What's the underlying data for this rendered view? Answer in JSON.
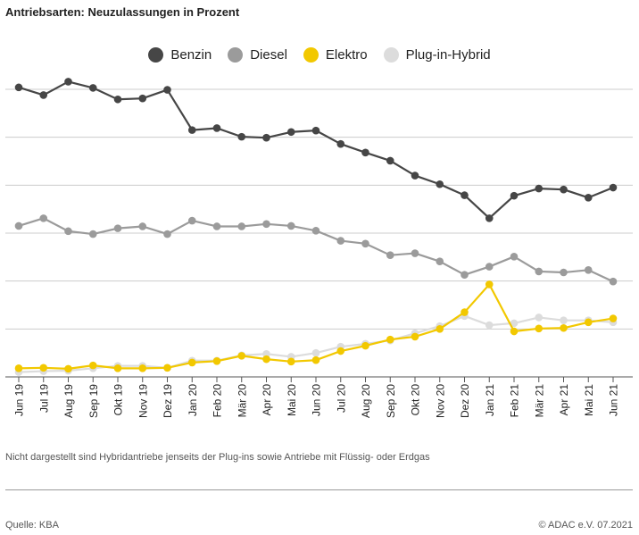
{
  "title": "Antriebsarten: Neuzulassungen in Prozent",
  "note": "Nicht dargestellt sind Hybridantriebe jenseits der Plug-ins sowie Antriebe mit Flüssig- oder Erdgas",
  "source": "Quelle: KBA",
  "copyright": "© ADAC e.V. 07.2021",
  "chart_data": {
    "type": "line",
    "categories": [
      "Jun 19",
      "Jul 19",
      "Aug 19",
      "Sep 19",
      "Okt 19",
      "Nov 19",
      "Dez 19",
      "Jan 20",
      "Feb 20",
      "Mär 20",
      "Apr 20",
      "Mai 20",
      "Jun 20",
      "Jul 20",
      "Aug 20",
      "Sep 20",
      "Okt 20",
      "Nov 20",
      "Dez 20",
      "Jan 21",
      "Feb 21",
      "Mär 21",
      "Apr 21",
      "Mai 21",
      "Jun 21"
    ],
    "ylim": [
      0,
      60
    ],
    "grid": true,
    "legend_position": "top-center",
    "series": [
      {
        "name": "Benzin",
        "color": "#464646",
        "values": [
          60.4,
          58.8,
          61.6,
          60.3,
          57.9,
          58.1,
          59.9,
          51.5,
          51.9,
          50.1,
          49.9,
          51.1,
          51.4,
          48.6,
          46.8,
          45.1,
          42.0,
          40.2,
          37.9,
          33.1,
          37.8,
          39.3,
          39.1,
          37.4,
          39.5
        ]
      },
      {
        "name": "Diesel",
        "color": "#9b9b9b",
        "values": [
          31.5,
          33.1,
          30.4,
          29.8,
          31.0,
          31.4,
          29.8,
          32.6,
          31.4,
          31.4,
          31.9,
          31.5,
          30.5,
          28.4,
          27.8,
          25.4,
          25.8,
          24.1,
          21.3,
          23.0,
          25.1,
          22.0,
          21.8,
          22.3,
          19.9
        ]
      },
      {
        "name": "Elektro",
        "color": "#f2c800",
        "values": [
          1.8,
          1.9,
          1.7,
          2.4,
          1.8,
          1.8,
          1.9,
          3.0,
          3.3,
          4.4,
          3.7,
          3.2,
          3.5,
          5.4,
          6.5,
          7.8,
          8.4,
          10.0,
          13.5,
          19.3,
          9.5,
          10.1,
          10.2,
          11.4,
          12.2
        ]
      },
      {
        "name": "Plug-in-Hybrid",
        "color": "#dcdcdc",
        "values": [
          1.0,
          1.2,
          1.3,
          1.8,
          2.3,
          2.3,
          1.9,
          3.4,
          3.4,
          4.5,
          4.8,
          4.2,
          5.0,
          6.3,
          6.9,
          7.6,
          9.1,
          10.6,
          12.7,
          10.8,
          11.2,
          12.4,
          11.8,
          11.8,
          11.4
        ]
      }
    ]
  }
}
